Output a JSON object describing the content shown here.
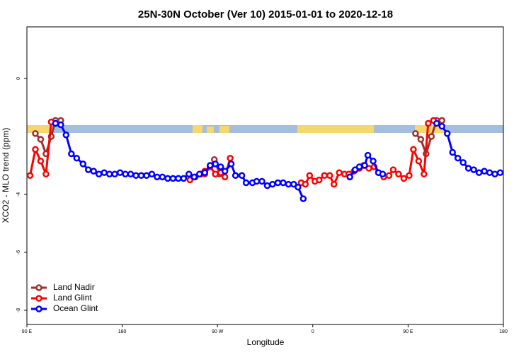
{
  "chart_data": {
    "type": "line",
    "title": "25N-30N October (Ver 10)   2015-01-01 to 2020-12-18",
    "x_label": "Longitude",
    "y_label": "XCO2 - MLO trend (ppm)",
    "xlim": [
      90,
      540
    ],
    "ylim": [
      -8.49,
      1.78
    ],
    "xticks": [
      {
        "value": 90,
        "label": "90 E"
      },
      180,
      {
        "value": 270,
        "label": "90 W"
      },
      {
        "value": 360,
        "label": "0"
      },
      {
        "value": 450,
        "label": "90 E"
      },
      {
        "value": 540,
        "label": "180"
      }
    ],
    "yticks": [
      -8,
      -6,
      -4,
      0
    ],
    "legend": "bottom-left",
    "series": [
      {
        "name": "Land Nadir",
        "color": "#a0302e",
        "x": [
          98,
          103,
          108,
          113,
          117,
          122,
          null,
          258,
          263,
          267,
          272,
          null,
          457,
          462,
          467,
          472,
          477,
          482
        ],
        "values": [
          -1.9,
          -2.1,
          -2.6,
          -2.0,
          -1.45,
          -1.45,
          null,
          -3.3,
          -3.05,
          -2.8,
          -3.3,
          null,
          -1.9,
          -2.1,
          -2.6,
          -2.0,
          -1.45,
          -1.45
        ]
      },
      {
        "name": "Land Glint",
        "color": "#ff0000",
        "x": [
          93,
          98,
          103,
          108,
          113,
          117,
          null,
          244,
          249,
          254,
          258,
          263,
          268,
          273,
          277,
          282,
          null,
          349,
          353,
          357,
          362,
          366,
          371,
          376,
          380,
          385,
          390,
          394,
          399,
          404,
          408,
          413,
          418,
          422,
          427,
          432,
          436,
          441,
          446,
          451,
          455,
          460,
          465,
          469,
          474
        ],
        "values": [
          -3.35,
          -2.45,
          -2.85,
          -3.3,
          -1.5,
          -1.55,
          null,
          -3.5,
          -3.4,
          -3.3,
          -3.2,
          -3.05,
          -3.3,
          -3.25,
          -3.4,
          -2.75,
          null,
          -3.6,
          -3.65,
          -3.35,
          -3.55,
          -3.5,
          -3.35,
          -3.35,
          -3.65,
          -3.25,
          -3.3,
          -3.3,
          -3.2,
          -3.1,
          -3.0,
          -3.1,
          -3.05,
          -3.25,
          -3.4,
          -3.35,
          -3.15,
          -3.3,
          -3.45,
          -3.35,
          -2.45,
          -2.85,
          -3.3,
          -1.55,
          -1.45
        ]
      },
      {
        "name": "Ocean Glint",
        "color": "#0000ff",
        "x": [
          117,
          122,
          127,
          132,
          137,
          143,
          148,
          153,
          158,
          163,
          168,
          173,
          178,
          183,
          188,
          193,
          198,
          203,
          208,
          213,
          218,
          223,
          228,
          233,
          238,
          243,
          248,
          253,
          258,
          263,
          268,
          273,
          277,
          283,
          287,
          293,
          297,
          303,
          307,
          312,
          317,
          322,
          327,
          332,
          337,
          342,
          346,
          351,
          null,
          395,
          400,
          404,
          409,
          412,
          417,
          422,
          426,
          null,
          477,
          482,
          487,
          492,
          497,
          502,
          507,
          512,
          517,
          522,
          527,
          532,
          537
        ],
        "values": [
          -1.55,
          -1.6,
          -1.95,
          -2.6,
          -2.75,
          -2.95,
          -3.15,
          -3.2,
          -3.3,
          -3.25,
          -3.3,
          -3.3,
          -3.25,
          -3.3,
          -3.3,
          -3.35,
          -3.35,
          -3.35,
          -3.3,
          -3.4,
          -3.4,
          -3.45,
          -3.45,
          -3.45,
          -3.45,
          -3.3,
          -3.4,
          -3.3,
          -3.25,
          -3.0,
          -2.95,
          -3.05,
          -3.2,
          -2.95,
          -3.35,
          -3.35,
          -3.6,
          -3.6,
          -3.55,
          -3.55,
          -3.7,
          -3.65,
          -3.6,
          -3.6,
          -3.65,
          -3.65,
          -3.75,
          -4.15,
          null,
          -3.4,
          -3.15,
          -3.05,
          -3.0,
          -2.65,
          -2.85,
          -3.25,
          -3.3,
          null,
          -1.55,
          -1.65,
          -1.9,
          -2.55,
          -2.75,
          -2.9,
          -3.1,
          -3.15,
          -3.25,
          -3.2,
          -3.25,
          -3.3,
          -3.25
        ]
      }
    ]
  }
}
